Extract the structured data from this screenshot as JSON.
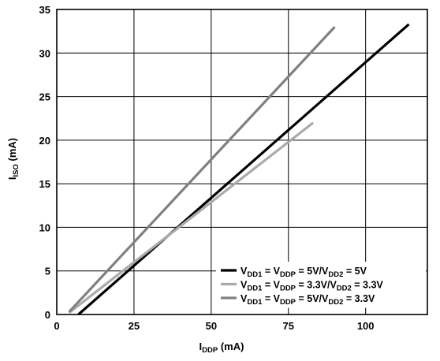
{
  "chart_data": {
    "type": "line",
    "title": "",
    "xlabel": {
      "main": "I",
      "sub": "DDP",
      "unit": " (mA)"
    },
    "ylabel": {
      "main": "I",
      "sub": "ISO",
      "unit": " (mA)"
    },
    "xlim": [
      0,
      120
    ],
    "ylim": [
      0,
      35
    ],
    "x_ticks": [
      0,
      25,
      50,
      75,
      100
    ],
    "y_ticks": [
      0,
      5,
      10,
      15,
      20,
      25,
      30,
      35
    ],
    "grid": true,
    "legend_position": "bottom-right",
    "series": [
      {
        "legend": [
          [
            "V",
            ""
          ],
          [
            "DD1",
            "sub"
          ],
          [
            " = V",
            ""
          ],
          [
            "DDP",
            "sub"
          ],
          [
            " = 5V/V",
            ""
          ],
          [
            "DD2",
            "sub"
          ],
          [
            " = 5V",
            ""
          ]
        ],
        "color": "#000000",
        "x": [
          7,
          114
        ],
        "y": [
          0,
          33.3
        ]
      },
      {
        "legend": [
          [
            "V",
            ""
          ],
          [
            "DD1",
            "sub"
          ],
          [
            " = V",
            ""
          ],
          [
            "DDP",
            "sub"
          ],
          [
            " = 3.3V/V",
            ""
          ],
          [
            "DD2",
            "sub"
          ],
          [
            " = 3.3V",
            ""
          ]
        ],
        "color": "#aaaaaa",
        "x": [
          4,
          83
        ],
        "y": [
          0.2,
          22
        ]
      },
      {
        "legend": [
          [
            "V",
            ""
          ],
          [
            "DD1",
            "sub"
          ],
          [
            " = V",
            ""
          ],
          [
            "DDP",
            "sub"
          ],
          [
            " = 5V/V",
            ""
          ],
          [
            "DD2",
            "sub"
          ],
          [
            " = 3.3V",
            ""
          ]
        ],
        "color": "#808080",
        "x": [
          4,
          90
        ],
        "y": [
          0.3,
          33
        ]
      }
    ]
  }
}
